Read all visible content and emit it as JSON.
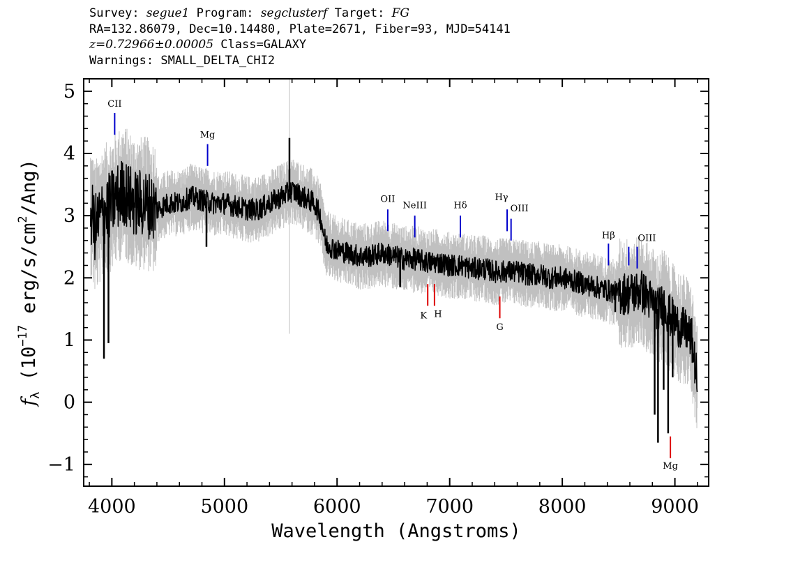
{
  "header": {
    "survey_label": "Survey:",
    "survey": "segue1",
    "program_label": "Program:",
    "program": "segclusterf",
    "target_label": "Target:",
    "target": "FG",
    "line2": "RA=132.86079, Dec=10.14480, Plate=2671, Fiber=93, MJD=54141",
    "redshift": "z=0.72966±0.00005",
    "class_text": "Class=GALAXY",
    "warnings": "Warnings: SMALL_DELTA_CHI2"
  },
  "chart_data": {
    "type": "line",
    "xlabel": "Wavelength (Angstroms)",
    "ylabel": "f_λ (10^-17 erg/s/cm^2/Ang)",
    "xlim": [
      3750,
      9300
    ],
    "ylim": [
      -1.35,
      5.2
    ],
    "x_ticks": [
      4000,
      5000,
      6000,
      7000,
      8000,
      9000
    ],
    "y_ticks": [
      -1,
      0,
      1,
      2,
      3,
      4,
      5
    ],
    "grid": false,
    "colors": {
      "flux": "#000000",
      "noise": "#c0c0c0",
      "emission": "#0000cc",
      "absorption": "#dd0000"
    },
    "series": [
      {
        "role": "flux",
        "x": [
          3810,
          3850,
          3900,
          3950,
          4000,
          4050,
          4100,
          4150,
          4200,
          4300,
          4400,
          4500,
          4600,
          4700,
          4800,
          4900,
          5000,
          5100,
          5200,
          5300,
          5400,
          5500,
          5600,
          5700,
          5800,
          5850,
          5900,
          6000,
          6100,
          6200,
          6300,
          6400,
          6500,
          6600,
          6700,
          6800,
          6900,
          7000,
          7100,
          7200,
          7300,
          7400,
          7500,
          7600,
          7700,
          7800,
          7900,
          8000,
          8100,
          8200,
          8300,
          8400,
          8500,
          8600,
          8700,
          8800,
          8850,
          8900,
          8950,
          9000,
          9050,
          9100,
          9150,
          9200
        ],
        "y": [
          3.1,
          2.8,
          3.0,
          3.1,
          3.2,
          3.3,
          3.4,
          3.3,
          3.2,
          3.2,
          3.1,
          3.2,
          3.2,
          3.3,
          3.25,
          3.2,
          3.2,
          3.15,
          3.1,
          3.1,
          3.2,
          3.3,
          3.4,
          3.3,
          3.2,
          3.0,
          2.55,
          2.45,
          2.4,
          2.35,
          2.35,
          2.4,
          2.35,
          2.3,
          2.3,
          2.25,
          2.25,
          2.2,
          2.2,
          2.15,
          2.15,
          2.1,
          2.1,
          2.1,
          2.05,
          2.05,
          2.0,
          2.0,
          1.95,
          1.9,
          1.85,
          1.8,
          1.75,
          1.75,
          1.8,
          1.6,
          1.5,
          1.6,
          1.4,
          1.3,
          1.2,
          1.15,
          1.0,
          0.3
        ]
      }
    ],
    "spikes": [
      {
        "x": 3930,
        "y": 0.7
      },
      {
        "x": 3970,
        "y": 0.95
      },
      {
        "x": 4840,
        "y": 2.5
      },
      {
        "x": 5577,
        "y": 4.25
      },
      {
        "x": 6560,
        "y": 1.85
      },
      {
        "x": 8470,
        "y": 1.45
      },
      {
        "x": 8820,
        "y": -0.2
      },
      {
        "x": 8850,
        "y": -0.65
      },
      {
        "x": 8900,
        "y": 0.2
      },
      {
        "x": 8940,
        "y": -0.5
      },
      {
        "x": 8980,
        "y": 0.4
      }
    ],
    "line_markers": [
      {
        "label": "CII",
        "x": 4025,
        "y1": 4.3,
        "y2": 4.65,
        "type": "emission",
        "label_y": 4.75
      },
      {
        "label": "Mg",
        "x": 4850,
        "y1": 3.8,
        "y2": 4.15,
        "type": "emission",
        "label_y": 4.25
      },
      {
        "label": "OII",
        "x": 6450,
        "y1": 2.75,
        "y2": 3.1,
        "type": "emission",
        "label_y": 3.22
      },
      {
        "label": "NeIII",
        "x": 6690,
        "y1": 2.65,
        "y2": 3.0,
        "type": "emission",
        "label_y": 3.12
      },
      {
        "label": "Hδ",
        "x": 7095,
        "y1": 2.65,
        "y2": 3.0,
        "type": "emission",
        "label_y": 3.12
      },
      {
        "label": "Hγ",
        "x": 7510,
        "y1": 2.75,
        "y2": 3.1,
        "type": "emission",
        "label_y": 3.25
      },
      {
        "label": "OIII",
        "x": 7545,
        "y1": 2.6,
        "y2": 2.95,
        "type": "emission",
        "label_y": 3.07
      },
      {
        "label": "Hβ",
        "x": 8410,
        "y1": 2.2,
        "y2": 2.55,
        "type": "emission",
        "label_y": 2.64
      },
      {
        "label": "OIII",
        "x": 8590,
        "y1": 2.2,
        "y2": 2.5,
        "type": "emission",
        "label_y": 2.59
      },
      {
        "label": "",
        "x": 8665,
        "y1": 2.15,
        "y2": 2.5,
        "type": "emission",
        "label_y": 2.6
      },
      {
        "label": "K",
        "x": 6805,
        "y1": 1.55,
        "y2": 1.9,
        "type": "absorption",
        "label_y": 1.35
      },
      {
        "label": "H",
        "x": 6865,
        "y1": 1.55,
        "y2": 1.9,
        "type": "absorption",
        "label_y": 1.37
      },
      {
        "label": "G",
        "x": 7445,
        "y1": 1.35,
        "y2": 1.7,
        "type": "absorption",
        "label_y": 1.16
      },
      {
        "label": "Mg",
        "x": 8960,
        "y1": -0.9,
        "y2": -0.55,
        "type": "absorption",
        "label_y": -1.07
      }
    ]
  }
}
